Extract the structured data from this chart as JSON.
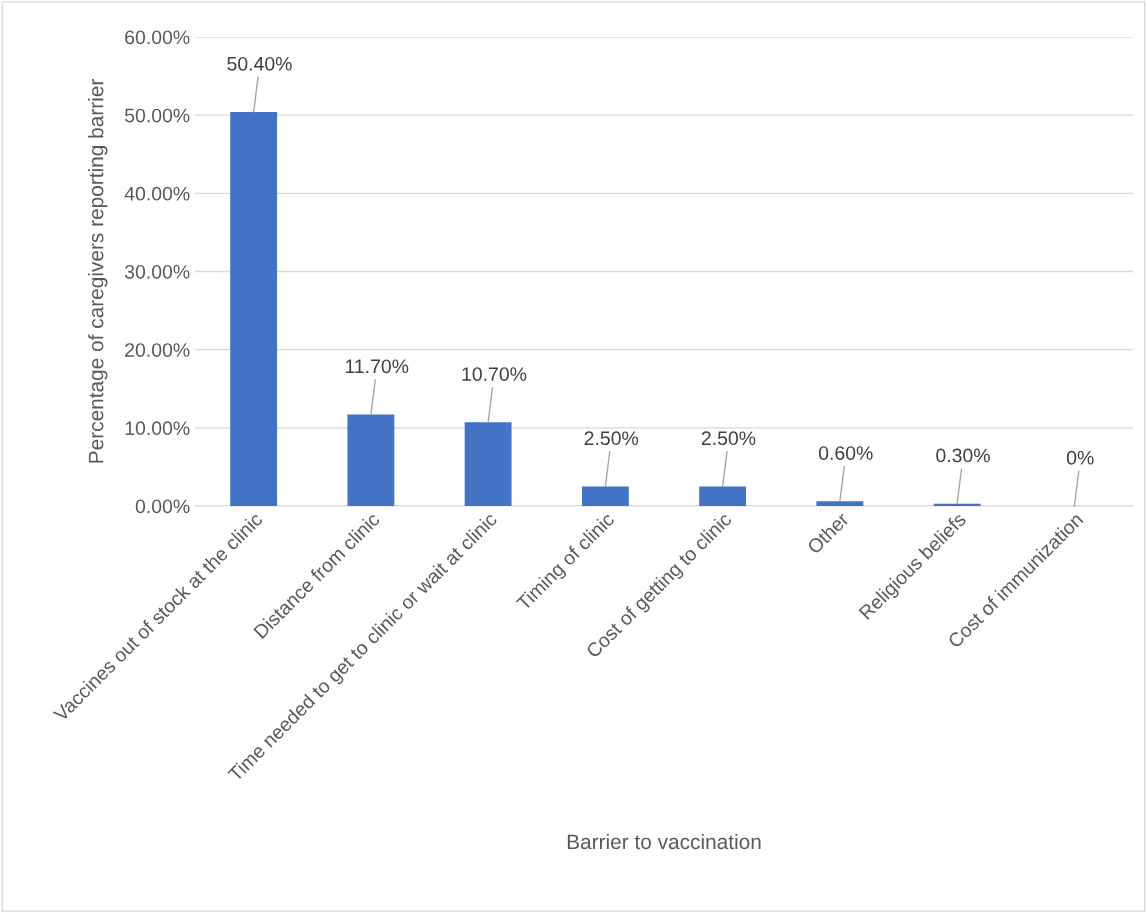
{
  "chart_data": {
    "type": "bar",
    "xlabel": "Barrier to vaccination",
    "ylabel": "Percentage of caregivers reporting barrier",
    "categories": [
      "Vaccines out of stock at the clinic",
      "Distance from clinic",
      "Time needed to get to clinic or wait at clinic",
      "Timing of clinic",
      "Cost of getting to clinic",
      "Other",
      "Religious beliefs",
      "Cost of immunization"
    ],
    "values": [
      50.4,
      11.7,
      10.7,
      2.5,
      2.5,
      0.6,
      0.3,
      0
    ],
    "value_labels": [
      "50.40%",
      "11.70%",
      "10.70%",
      "2.50%",
      "2.50%",
      "0.60%",
      "0.30%",
      "0%"
    ],
    "color": "#4472c4",
    "ylim": [
      0,
      60
    ],
    "yticks": [
      {
        "value": 0,
        "label": "0.00%"
      },
      {
        "value": 10,
        "label": "10.00%"
      },
      {
        "value": 20,
        "label": "20.00%"
      },
      {
        "value": 30,
        "label": "30.00%"
      },
      {
        "value": 40,
        "label": "40.00%"
      },
      {
        "value": 50,
        "label": "50.00%"
      },
      {
        "value": 60,
        "label": "60.00%"
      }
    ],
    "grid": "y",
    "legend": false
  }
}
